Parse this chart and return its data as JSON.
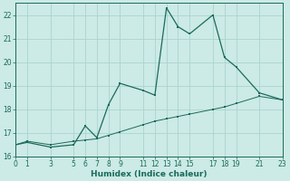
{
  "xlabel": "Humidex (Indice chaleur)",
  "bg_color": "#cceae6",
  "grid_color": "#aad4cf",
  "line_color": "#1a6b5a",
  "line1_x": [
    0,
    1,
    3,
    5,
    6,
    7,
    8,
    9,
    11,
    12,
    13,
    14,
    15,
    17,
    18,
    19,
    21,
    23
  ],
  "line1_y": [
    16.5,
    16.6,
    16.4,
    16.5,
    17.3,
    16.8,
    18.2,
    19.1,
    18.8,
    18.6,
    22.3,
    21.5,
    21.2,
    22.0,
    20.2,
    19.8,
    18.7,
    18.4
  ],
  "line2_x": [
    0,
    1,
    3,
    5,
    6,
    7,
    8,
    9,
    11,
    12,
    13,
    14,
    15,
    17,
    18,
    19,
    21,
    23
  ],
  "line2_y": [
    16.5,
    16.65,
    16.5,
    16.65,
    16.7,
    16.75,
    16.9,
    17.05,
    17.35,
    17.5,
    17.6,
    17.7,
    17.8,
    18.0,
    18.1,
    18.25,
    18.55,
    18.4
  ],
  "xlim": [
    0,
    23
  ],
  "ylim": [
    16,
    22.5
  ],
  "xticks": [
    0,
    1,
    3,
    5,
    6,
    7,
    8,
    9,
    11,
    12,
    13,
    14,
    15,
    17,
    18,
    19,
    21,
    23
  ],
  "yticks": [
    16,
    17,
    18,
    19,
    20,
    21,
    22
  ],
  "tick_fontsize": 5.5,
  "xlabel_fontsize": 6.5
}
